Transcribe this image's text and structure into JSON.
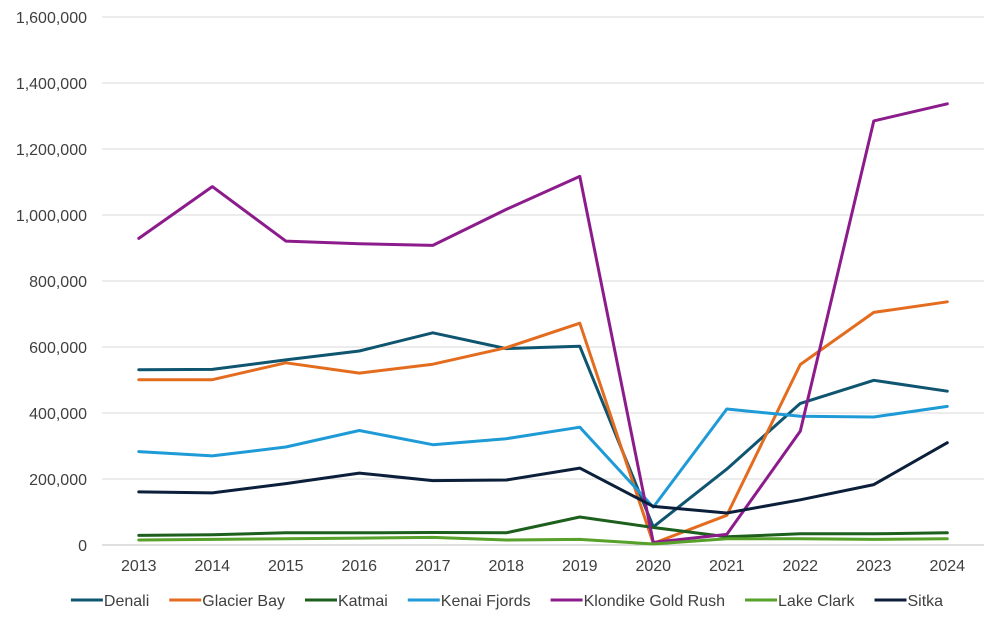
{
  "chart_data": {
    "type": "line",
    "title": "",
    "xlabel": "",
    "ylabel": "",
    "x": [
      "2013",
      "2014",
      "2015",
      "2016",
      "2017",
      "2018",
      "2019",
      "2020",
      "2021",
      "2022",
      "2023",
      "2024"
    ],
    "ylim": [
      0,
      1600000
    ],
    "yticks": [
      0,
      200000,
      400000,
      600000,
      800000,
      1000000,
      1200000,
      1400000,
      1600000
    ],
    "ytick_labels": [
      "0",
      "200,000",
      "400,000",
      "600,000",
      "800,000",
      "1,000,000",
      "1,200,000",
      "1,400,000",
      "1,600,000"
    ],
    "grid": "horizontal",
    "legend_position": "bottom",
    "series": [
      {
        "name": "Denali",
        "color": "#0f5570",
        "values": [
          531000,
          532000,
          561000,
          588000,
          643000,
          595000,
          602000,
          55000,
          230000,
          429000,
          499000,
          466000
        ]
      },
      {
        "name": "Glacier Bay",
        "color": "#e36c1f",
        "values": [
          501000,
          501000,
          552000,
          521000,
          548000,
          598000,
          672000,
          5000,
          90000,
          547000,
          705000,
          737000
        ]
      },
      {
        "name": "Katmai",
        "color": "#1d5f1d",
        "values": [
          29000,
          31000,
          37000,
          37000,
          38000,
          37000,
          85000,
          53000,
          25000,
          34000,
          34000,
          37000
        ]
      },
      {
        "name": "Kenai Fjords",
        "color": "#1e9bd7",
        "values": [
          283000,
          270000,
          297000,
          347000,
          304000,
          322000,
          357000,
          115000,
          412000,
          390000,
          388000,
          420000
        ]
      },
      {
        "name": "Klondike Gold Rush",
        "color": "#8c1c8c",
        "values": [
          929000,
          1086000,
          921000,
          913000,
          908000,
          1017000,
          1117000,
          8000,
          32000,
          345000,
          1285000,
          1337000
        ]
      },
      {
        "name": "Lake Clark",
        "color": "#57a02a",
        "values": [
          15000,
          17000,
          19000,
          21000,
          23000,
          15000,
          17000,
          3000,
          19000,
          19000,
          17000,
          19000
        ]
      },
      {
        "name": "Sitka",
        "color": "#0b1f3a",
        "values": [
          161000,
          158000,
          186000,
          218000,
          195000,
          197000,
          233000,
          117000,
          97000,
          137000,
          183000,
          310000
        ]
      }
    ]
  }
}
